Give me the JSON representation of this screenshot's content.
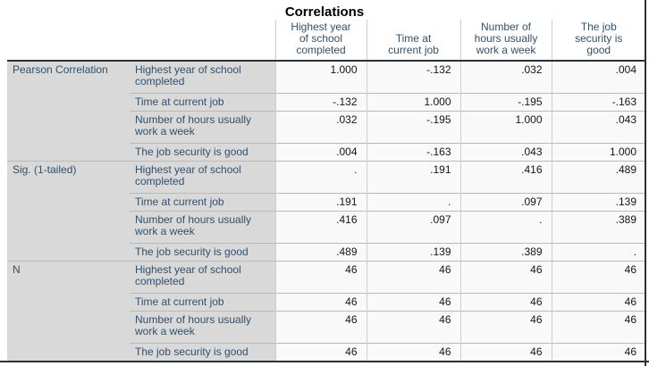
{
  "title": "Correlations",
  "columns": [
    "Highest year\nof school\ncompleted",
    "Time at\ncurrent job",
    "Number of\nhours usually\nwork a week",
    "The job\nsecurity is\ngood"
  ],
  "row_variables": [
    "Highest year of school completed",
    "Time at current job",
    "Number of hours usually work a week",
    "The job security is good"
  ],
  "sections": [
    {
      "label": "Pearson Correlation",
      "rows": [
        [
          "1.000",
          "-.132",
          ".032",
          ".004"
        ],
        [
          "-.132",
          "1.000",
          "-.195",
          "-.163"
        ],
        [
          ".032",
          "-.195",
          "1.000",
          ".043"
        ],
        [
          ".004",
          "-.163",
          ".043",
          "1.000"
        ]
      ]
    },
    {
      "label": "Sig. (1-tailed)",
      "rows": [
        [
          ".",
          ".191",
          ".416",
          ".489"
        ],
        [
          ".191",
          ".",
          ".097",
          ".139"
        ],
        [
          ".416",
          ".097",
          ".",
          ".389"
        ],
        [
          ".489",
          ".139",
          ".389",
          "."
        ]
      ]
    },
    {
      "label": "N",
      "rows": [
        [
          "46",
          "46",
          "46",
          "46"
        ],
        [
          "46",
          "46",
          "46",
          "46"
        ],
        [
          "46",
          "46",
          "46",
          "46"
        ],
        [
          "46",
          "46",
          "46",
          "46"
        ]
      ]
    }
  ],
  "chart_data": {
    "type": "table",
    "title": "Correlations",
    "statistics": [
      "Pearson Correlation",
      "Sig. (1-tailed)",
      "N"
    ],
    "variables": [
      "Highest year of school completed",
      "Time at current job",
      "Number of hours usually work a week",
      "The job security is good"
    ],
    "pearson_correlation": [
      [
        1.0,
        -0.132,
        0.032,
        0.004
      ],
      [
        -0.132,
        1.0,
        -0.195,
        -0.163
      ],
      [
        0.032,
        -0.195,
        1.0,
        0.043
      ],
      [
        0.004,
        -0.163,
        0.043,
        1.0
      ]
    ],
    "sig_1_tailed": [
      [
        null,
        0.191,
        0.416,
        0.489
      ],
      [
        0.191,
        null,
        0.097,
        0.139
      ],
      [
        0.416,
        0.097,
        null,
        0.389
      ],
      [
        0.489,
        0.139,
        0.389,
        null
      ]
    ],
    "n": [
      [
        46,
        46,
        46,
        46
      ],
      [
        46,
        46,
        46,
        46
      ],
      [
        46,
        46,
        46,
        46
      ],
      [
        46,
        46,
        46,
        46
      ]
    ]
  },
  "colors": {
    "heavy_rule": "#26323c",
    "light_rule": "#b9b9b9",
    "vert_rule": "#cdcdcd",
    "label_bg": "#d9d9d9",
    "cell_bg": "#f9f9f9",
    "header_text": "#31506b",
    "number_text": "#151515",
    "title_text": "#000000",
    "page_bg": "#ffffff"
  }
}
